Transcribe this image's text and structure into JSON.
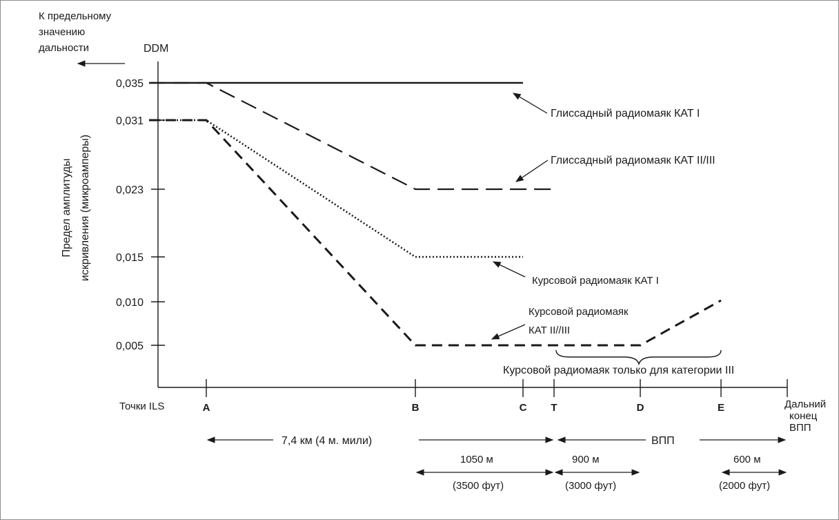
{
  "chart_data": {
    "type": "line",
    "y_axis_title_line1": "Предел  амплитуды",
    "y_axis_title_line2": "искривления (микроамперы)",
    "y_top_label": "DDM",
    "range_note_lines": [
      "К предельному",
      "значению",
      "дальности"
    ],
    "x_axis_title": "Точки ILS",
    "y_ticks": [
      "0,035",
      "0,031",
      "0,023",
      "0,015",
      "0,010",
      "0,005"
    ],
    "y_tick_values": [
      0.035,
      0.031,
      0.023,
      0.015,
      0.01,
      0.005
    ],
    "x_points": [
      "A",
      "B",
      "C",
      "T",
      "D",
      "E"
    ],
    "far_end_lines": [
      "Дальний",
      "конец",
      "ВПП"
    ],
    "series": [
      {
        "name": "Глиссадный радиомаяк КАТ I",
        "style": "solid",
        "points": [
          [
            "left",
            0.035
          ],
          [
            "A",
            0.035
          ],
          [
            "C",
            0.035
          ]
        ]
      },
      {
        "name": "Глиссадный радиомаяк КАТ II/III",
        "style": "longdash",
        "points": [
          [
            "left",
            0.035
          ],
          [
            "A",
            0.035
          ],
          [
            "B",
            0.023
          ],
          [
            "T",
            0.023
          ]
        ]
      },
      {
        "name": "Курсовой радиомаяк КАТ I",
        "style": "dotted",
        "points": [
          [
            "left",
            0.031
          ],
          [
            "A",
            0.031
          ],
          [
            "B",
            0.015
          ],
          [
            "C",
            0.015
          ]
        ]
      },
      {
        "name_lines": [
          "Курсовой радиомаяк",
          "КАТ II//III"
        ],
        "style": "dash",
        "points": [
          [
            "left",
            0.031
          ],
          [
            "A",
            0.031
          ],
          [
            "B",
            0.005
          ],
          [
            "D",
            0.005
          ],
          [
            "E",
            0.01
          ]
        ]
      }
    ],
    "brace_label": "Курсовой радиомаяк только для категории  III",
    "distances": {
      "total_label": "7,4 км  (4 м. мили)",
      "runway_label": "ВПП",
      "b_t_m": "1050 м",
      "b_t_ft": "(3500 фут)",
      "t_d_m": "900 м",
      "t_d_ft": "(3000 фут)",
      "e_end_m": "600 м",
      "e_end_ft": "(2000 фут)"
    }
  }
}
